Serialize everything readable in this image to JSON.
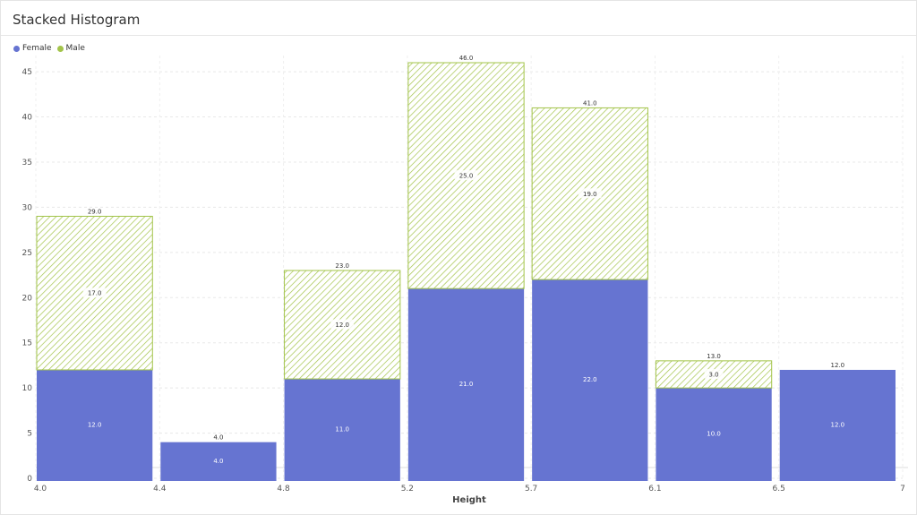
{
  "page": {
    "title": "Stacked Histogram"
  },
  "legend": [
    {
      "label": "Female",
      "color": "#6674d1"
    },
    {
      "label": "Male",
      "color": "#a3c44a"
    }
  ],
  "chart_data": {
    "type": "bar",
    "stacked": true,
    "title": "Stacked Histogram",
    "xlabel": "Height",
    "ylabel": "",
    "bins": [
      [
        4.0,
        4.4
      ],
      [
        4.4,
        4.8
      ],
      [
        4.8,
        5.2
      ],
      [
        5.2,
        5.7
      ],
      [
        5.7,
        6.1
      ],
      [
        6.1,
        6.5
      ],
      [
        6.5,
        7
      ]
    ],
    "x_tick_labels": [
      "4.0",
      "4.4",
      "4.8",
      "5.2",
      "5.7",
      "6.1",
      "6.5",
      "7"
    ],
    "series": [
      {
        "name": "Female",
        "values": [
          12,
          4,
          11,
          21,
          22,
          10,
          12
        ]
      },
      {
        "name": "Male",
        "values": [
          17,
          0,
          12,
          25,
          19,
          3,
          0
        ]
      }
    ],
    "totals": [
      29,
      4,
      23,
      46,
      41,
      13,
      12
    ],
    "ylim": [
      0,
      47
    ],
    "y_ticks": [
      0,
      5,
      10,
      15,
      20,
      25,
      30,
      35,
      40,
      45
    ],
    "grid": true,
    "legend_position": "top-left",
    "colors": {
      "female": "#6674d1",
      "male": "#a3c44a"
    }
  }
}
